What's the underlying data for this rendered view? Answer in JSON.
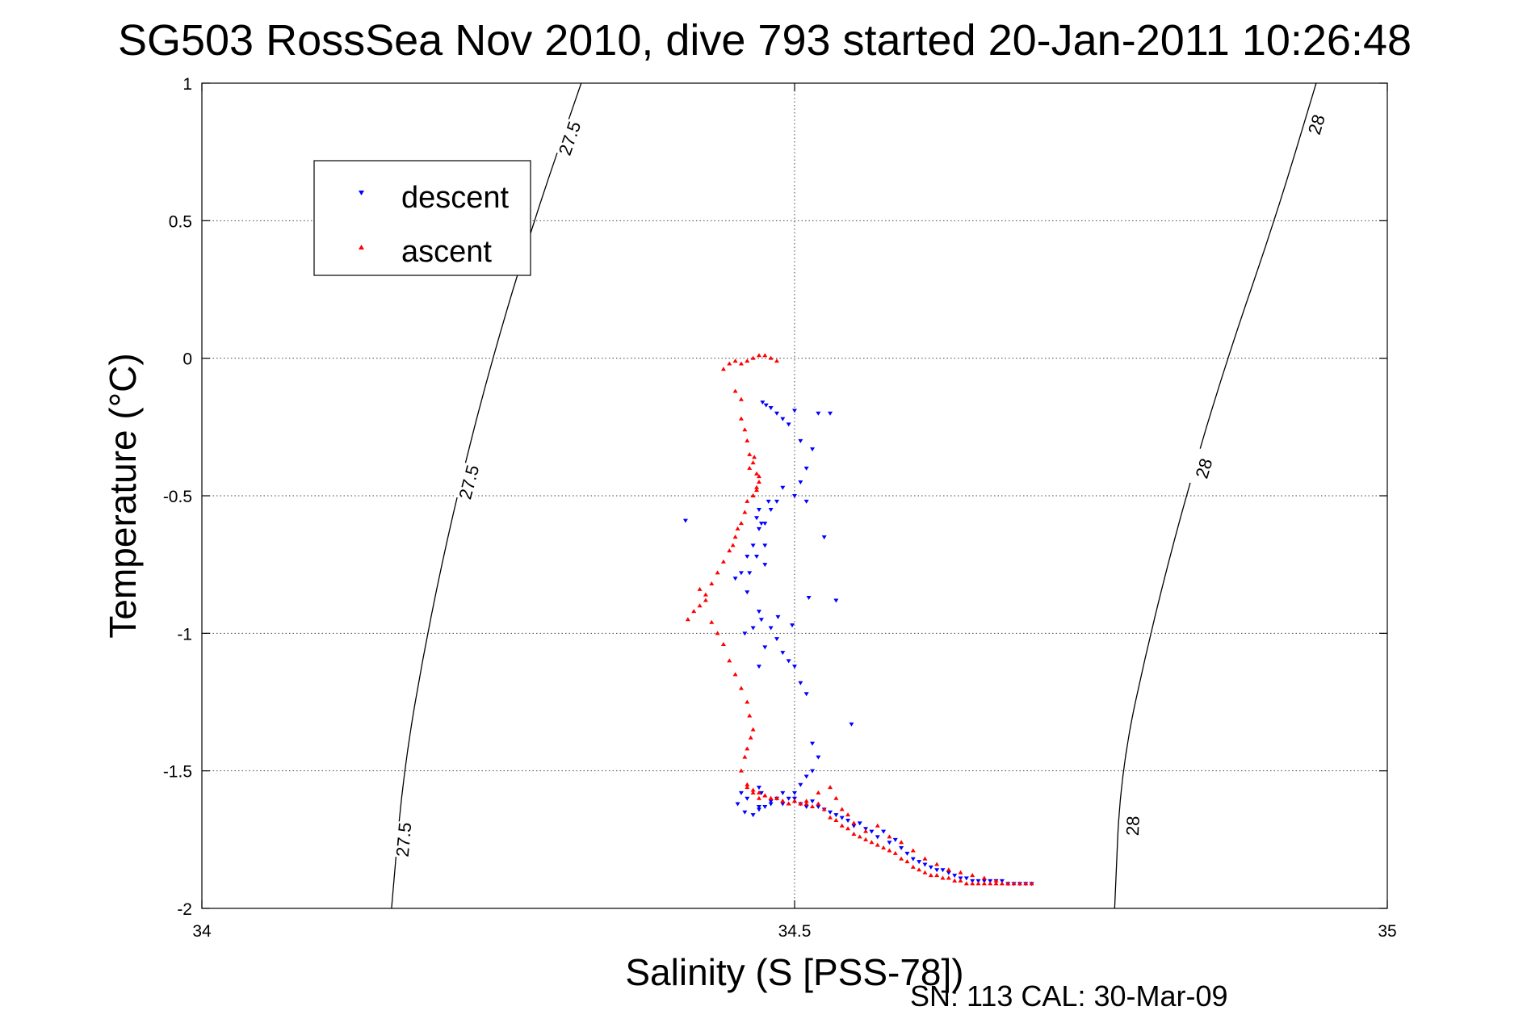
{
  "chart_data": {
    "type": "scatter",
    "title": "SG503 RossSea Nov 2010, dive 793 started 20-Jan-2011 10:26:48",
    "xlabel": "Salinity (S [PSS-78])",
    "ylabel": "Temperature (°C)",
    "xlim": [
      34,
      35
    ],
    "ylim": [
      -2,
      1
    ],
    "x_ticks": [
      "34",
      "34.5",
      "35"
    ],
    "y_ticks": [
      "1",
      "0.5",
      "0",
      "-0.5",
      "-1",
      "-1.5",
      "-2"
    ],
    "grid": true,
    "legend_position": "top-left",
    "footer": "SN: 113  CAL: 30-Mar-09",
    "contours": [
      {
        "level": "27.5",
        "points": [
          [
            34.32,
            1.0
          ],
          [
            34.28,
            0.5
          ],
          [
            34.245,
            0.0
          ],
          [
            34.215,
            -0.5
          ],
          [
            34.19,
            -1.0
          ],
          [
            34.17,
            -1.5
          ],
          [
            34.16,
            -2.0
          ]
        ],
        "label_positions": [
          [
            34.31,
            0.8
          ],
          [
            34.225,
            -0.45
          ],
          [
            34.17,
            -1.75
          ]
        ]
      },
      {
        "level": "28",
        "points": [
          [
            34.94,
            1.0
          ],
          [
            34.905,
            0.5
          ],
          [
            34.865,
            0.0
          ],
          [
            34.83,
            -0.5
          ],
          [
            34.8,
            -1.0
          ],
          [
            34.775,
            -1.5
          ],
          [
            34.77,
            -2.0
          ]
        ],
        "label_positions": [
          [
            34.94,
            0.85
          ],
          [
            34.845,
            -0.4
          ],
          [
            34.785,
            -1.7
          ]
        ]
      }
    ],
    "series": [
      {
        "name": "descent",
        "color": "#0000ff",
        "marker": "triangle-down",
        "x": [
          34.473,
          34.476,
          34.48,
          34.485,
          34.49,
          34.495,
          34.5,
          34.505,
          34.515,
          34.52,
          34.51,
          34.505,
          34.5,
          34.49,
          34.485,
          34.48,
          34.475,
          34.47,
          34.465,
          34.46,
          34.455,
          34.45,
          34.46,
          34.47,
          34.48,
          34.485,
          34.49,
          34.495,
          34.5,
          34.505,
          34.51,
          34.515,
          34.52,
          34.515,
          34.51,
          34.505,
          34.5,
          34.495,
          34.49,
          34.485,
          34.48,
          34.475,
          34.47,
          34.46,
          34.455,
          34.452,
          34.458,
          34.465,
          34.47,
          34.48,
          34.49,
          34.5,
          34.505,
          34.51,
          34.515,
          34.52,
          34.525,
          34.53,
          34.535,
          34.54,
          34.545,
          34.55,
          34.555,
          34.56,
          34.565,
          34.57,
          34.575,
          34.58,
          34.585,
          34.59,
          34.595,
          34.6,
          34.605,
          34.61,
          34.615,
          34.62,
          34.625,
          34.63,
          34.635,
          34.64,
          34.645,
          34.65,
          34.655,
          34.66,
          34.665,
          34.67,
          34.675,
          34.68,
          34.685,
          34.69,
          34.695,
          34.7,
          34.51,
          34.525,
          34.535,
          34.548,
          34.408,
          34.465,
          34.472,
          34.458,
          34.462,
          34.468,
          34.475,
          34.53,
          34.512,
          34.498,
          34.486,
          34.475,
          34.47,
          34.468,
          34.472,
          34.478,
          34.475,
          34.47,
          34.47,
          34.472
        ],
        "y": [
          -0.16,
          -0.17,
          -0.18,
          -0.2,
          -0.22,
          -0.24,
          -0.19,
          -0.3,
          -0.33,
          -0.2,
          -0.4,
          -0.45,
          -0.5,
          -0.47,
          -0.52,
          -0.55,
          -0.6,
          -0.62,
          -0.68,
          -0.72,
          -0.78,
          -0.8,
          -0.85,
          -0.92,
          -0.98,
          -1.02,
          -1.07,
          -1.1,
          -1.12,
          -1.18,
          -1.22,
          -1.4,
          -1.45,
          -1.5,
          -1.52,
          -1.55,
          -1.58,
          -1.6,
          -1.58,
          -1.6,
          -1.62,
          -1.63,
          -1.64,
          -1.6,
          -1.58,
          -1.62,
          -1.65,
          -1.66,
          -1.63,
          -1.61,
          -1.62,
          -1.6,
          -1.62,
          -1.63,
          -1.61,
          -1.63,
          -1.64,
          -1.65,
          -1.66,
          -1.67,
          -1.68,
          -1.7,
          -1.69,
          -1.71,
          -1.72,
          -1.74,
          -1.72,
          -1.76,
          -1.75,
          -1.78,
          -1.8,
          -1.82,
          -1.83,
          -1.84,
          -1.85,
          -1.86,
          -1.86,
          -1.87,
          -1.88,
          -1.89,
          -1.89,
          -1.9,
          -1.9,
          -1.9,
          -1.9,
          -1.9,
          -1.9,
          -1.91,
          -1.91,
          -1.91,
          -1.91,
          -1.91,
          -0.52,
          -0.65,
          -0.88,
          -1.33,
          -0.59,
          -0.98,
          -0.95,
          -1.0,
          -0.78,
          -0.72,
          -0.68,
          -0.2,
          -0.87,
          -0.97,
          -0.94,
          -0.75,
          -0.55,
          -0.58,
          -0.6,
          -0.52,
          -1.05,
          -1.12,
          -1.56,
          -1.58
        ]
      },
      {
        "name": "ascent",
        "color": "#ff0000",
        "marker": "triangle-up",
        "x": [
          34.44,
          34.445,
          34.45,
          34.455,
          34.46,
          34.465,
          34.47,
          34.475,
          34.48,
          34.485,
          34.45,
          34.455,
          34.455,
          34.458,
          34.46,
          34.462,
          34.465,
          34.468,
          34.47,
          34.468,
          34.465,
          34.462,
          34.466,
          34.47,
          34.468,
          34.465,
          34.46,
          34.458,
          34.455,
          34.452,
          34.45,
          34.448,
          34.445,
          34.44,
          34.435,
          34.43,
          34.425,
          34.42,
          34.415,
          34.41,
          34.42,
          34.425,
          34.43,
          34.435,
          34.44,
          34.445,
          34.45,
          34.455,
          34.46,
          34.462,
          34.465,
          34.463,
          34.46,
          34.458,
          34.455,
          34.46,
          34.465,
          34.47,
          34.475,
          34.48,
          34.485,
          34.49,
          34.495,
          34.5,
          34.505,
          34.51,
          34.515,
          34.52,
          34.525,
          34.53,
          34.535,
          34.54,
          34.545,
          34.55,
          34.555,
          34.56,
          34.565,
          34.57,
          34.575,
          34.58,
          34.585,
          34.59,
          34.595,
          34.6,
          34.605,
          34.61,
          34.615,
          34.62,
          34.625,
          34.63,
          34.635,
          34.64,
          34.645,
          34.65,
          34.655,
          34.66,
          34.665,
          34.67,
          34.675,
          34.68,
          34.685,
          34.69,
          34.695,
          34.7,
          34.46,
          34.465,
          34.47,
          34.475,
          34.48,
          34.485,
          34.49,
          34.495,
          34.5,
          34.505,
          34.51,
          34.52,
          34.53,
          34.535,
          34.54,
          34.545,
          34.55,
          34.56,
          34.57,
          34.58,
          34.59,
          34.6,
          34.61,
          34.62,
          34.63,
          34.64,
          34.65,
          34.66,
          34.67,
          34.68
        ],
        "y": [
          -0.04,
          -0.02,
          -0.01,
          -0.02,
          -0.01,
          0.0,
          0.01,
          0.01,
          0.0,
          -0.01,
          -0.12,
          -0.15,
          -0.22,
          -0.26,
          -0.3,
          -0.35,
          -0.38,
          -0.42,
          -0.45,
          -0.48,
          -0.5,
          -0.4,
          -0.36,
          -0.43,
          -0.47,
          -0.5,
          -0.52,
          -0.56,
          -0.6,
          -0.62,
          -0.65,
          -0.68,
          -0.7,
          -0.74,
          -0.78,
          -0.82,
          -0.86,
          -0.9,
          -0.92,
          -0.95,
          -0.84,
          -0.88,
          -0.96,
          -1.0,
          -1.04,
          -1.1,
          -1.15,
          -1.2,
          -1.25,
          -1.3,
          -1.35,
          -1.38,
          -1.42,
          -1.45,
          -1.5,
          -1.56,
          -1.58,
          -1.6,
          -1.59,
          -1.6,
          -1.6,
          -1.61,
          -1.62,
          -1.61,
          -1.62,
          -1.61,
          -1.63,
          -1.62,
          -1.64,
          -1.67,
          -1.68,
          -1.7,
          -1.71,
          -1.73,
          -1.74,
          -1.75,
          -1.76,
          -1.77,
          -1.78,
          -1.79,
          -1.8,
          -1.82,
          -1.83,
          -1.85,
          -1.86,
          -1.87,
          -1.88,
          -1.88,
          -1.89,
          -1.89,
          -1.9,
          -1.9,
          -1.91,
          -1.91,
          -1.91,
          -1.91,
          -1.91,
          -1.91,
          -1.91,
          -1.91,
          -1.91,
          -1.91,
          -1.91,
          -1.91,
          -1.55,
          -1.57,
          -1.58,
          -1.59,
          -1.6,
          -1.6,
          -1.61,
          -1.62,
          -1.61,
          -1.62,
          -1.62,
          -1.58,
          -1.56,
          -1.6,
          -1.64,
          -1.66,
          -1.69,
          -1.72,
          -1.7,
          -1.74,
          -1.76,
          -1.79,
          -1.82,
          -1.84,
          -1.86,
          -1.87,
          -1.88,
          -1.89,
          -1.9,
          -1.91
        ]
      }
    ]
  }
}
